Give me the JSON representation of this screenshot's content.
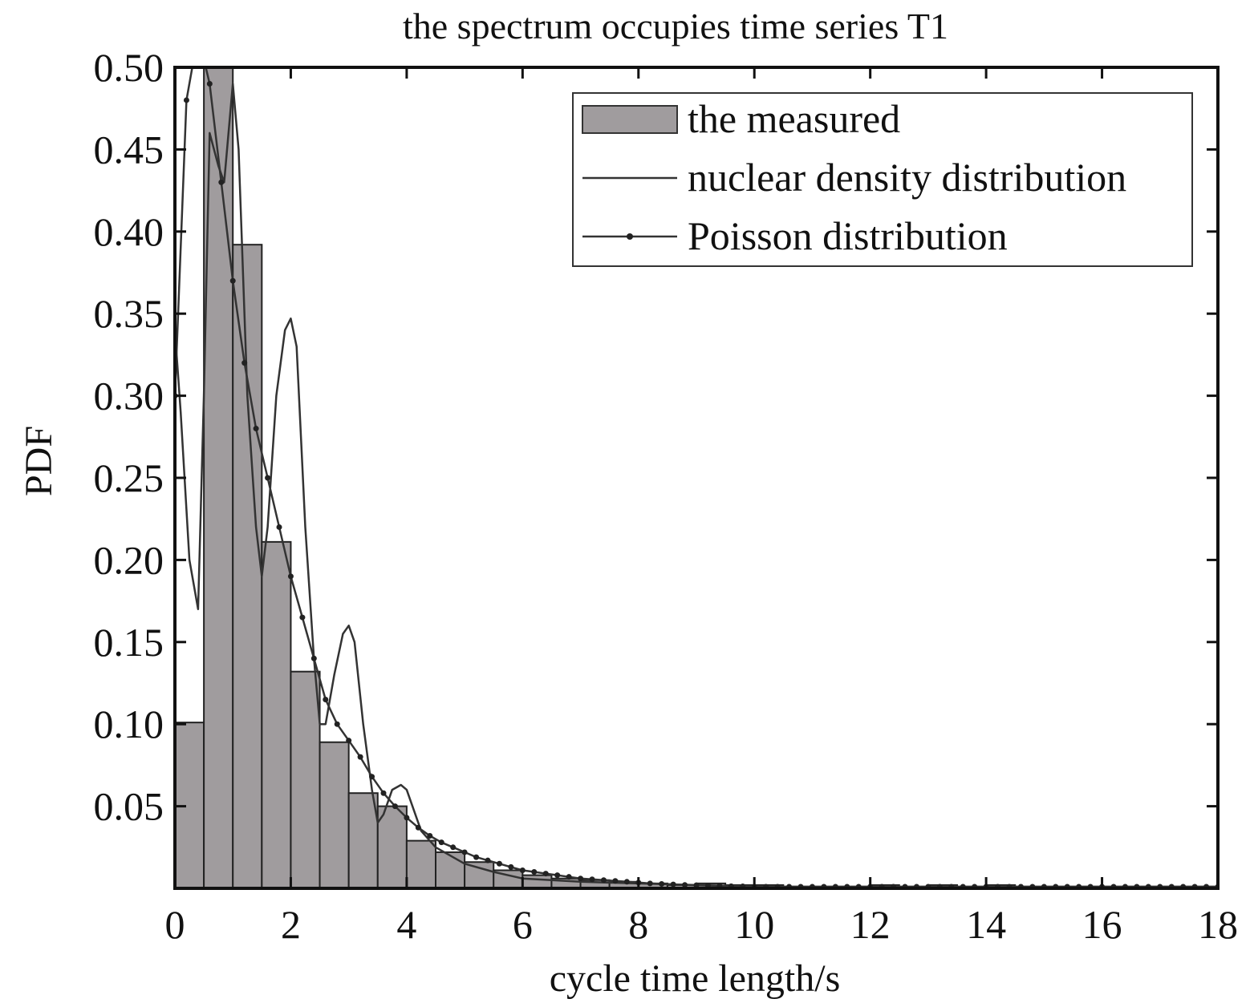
{
  "chart_data": {
    "type": "bar",
    "title": "the spectrum occupies time series T1",
    "xlabel": "cycle time length/s",
    "ylabel": "PDF",
    "xlim": [
      0,
      18
    ],
    "ylim": [
      0,
      0.5
    ],
    "x_ticks": [
      "0",
      "2",
      "4",
      "6",
      "8",
      "10",
      "12",
      "14",
      "16",
      "18"
    ],
    "y_ticks": [
      "0.05",
      "0.10",
      "0.15",
      "0.20",
      "0.25",
      "0.30",
      "0.35",
      "0.40",
      "0.45",
      "0.50"
    ],
    "legend_position": "top-right",
    "grid": false,
    "colors": {
      "bar_fill": "#a09c9e",
      "line": "#333333",
      "axis": "#111111"
    },
    "histogram": {
      "name": "the measured",
      "bin_width": 0.5,
      "bin_starts": [
        0,
        0.5,
        1,
        1.5,
        2,
        2.5,
        3,
        3.5,
        4,
        4.5,
        5,
        5.5,
        6,
        6.5,
        7,
        7.5,
        8,
        8.5,
        9,
        9.5,
        10,
        10.5,
        11,
        11.5,
        12,
        12.5,
        13,
        13.5,
        14,
        14.5,
        15,
        15.5,
        16,
        16.5,
        17,
        17.5
      ],
      "values": [
        0.101,
        0.5,
        0.392,
        0.211,
        0.132,
        0.089,
        0.058,
        0.05,
        0.029,
        0.022,
        0.016,
        0.011,
        0.008,
        0.006,
        0.005,
        0.004,
        0.003,
        0.002,
        0.003,
        0.002,
        0.002,
        0.001,
        0.001,
        0.001,
        0.002,
        0.001,
        0.002,
        0.001,
        0.002,
        0.001,
        0.001,
        0.001,
        0.001,
        0.001,
        0.001,
        0.001
      ]
    },
    "series": [
      {
        "name": "nuclear density distribution",
        "style": "line",
        "x": [
          0,
          0.1,
          0.25,
          0.4,
          0.5,
          0.6,
          0.75,
          0.85,
          1.0,
          1.1,
          1.25,
          1.4,
          1.5,
          1.6,
          1.75,
          1.9,
          2.0,
          2.1,
          2.25,
          2.4,
          2.5,
          2.6,
          2.75,
          2.9,
          3.0,
          3.1,
          3.25,
          3.4,
          3.5,
          3.6,
          3.75,
          3.9,
          4.0,
          4.1,
          4.25,
          4.5,
          5.0,
          5.5,
          6.0,
          7.0,
          8.0,
          9.0,
          10.0,
          12.0,
          14.0,
          16.0,
          18.0
        ],
        "y": [
          0.34,
          0.29,
          0.2,
          0.17,
          0.3,
          0.46,
          0.44,
          0.43,
          0.49,
          0.45,
          0.3,
          0.22,
          0.19,
          0.22,
          0.3,
          0.34,
          0.347,
          0.33,
          0.22,
          0.14,
          0.1,
          0.1,
          0.13,
          0.155,
          0.16,
          0.15,
          0.1,
          0.06,
          0.04,
          0.045,
          0.06,
          0.063,
          0.06,
          0.05,
          0.035,
          0.025,
          0.015,
          0.01,
          0.006,
          0.004,
          0.003,
          0.002,
          0.001,
          0.001,
          0.001,
          0.001,
          0.001
        ]
      },
      {
        "name": "Poisson distribution",
        "style": "line-dot",
        "x": [
          0,
          0.2,
          0.4,
          0.6,
          0.8,
          1.0,
          1.2,
          1.4,
          1.6,
          1.8,
          2.0,
          2.2,
          2.4,
          2.6,
          2.8,
          3.0,
          3.2,
          3.4,
          3.6,
          3.8,
          4.0,
          4.2,
          4.4,
          4.6,
          4.8,
          5.0,
          5.2,
          5.4,
          5.6,
          5.8,
          6.0,
          6.2,
          6.4,
          6.6,
          6.8,
          7.0,
          7.2,
          7.4,
          7.6,
          7.8,
          8.0,
          8.2,
          8.4,
          8.6,
          8.8,
          9.0,
          9.2,
          9.4,
          9.6,
          9.8,
          10.0,
          10.2,
          10.4,
          10.6,
          10.8,
          11.0,
          11.2,
          11.4,
          11.6,
          11.8,
          12.0,
          12.2,
          12.4,
          12.6,
          12.8,
          13.0,
          13.2,
          13.4,
          13.6,
          13.8,
          14.0,
          14.2,
          14.4,
          14.6,
          14.8,
          15.0,
          15.2,
          15.4,
          15.6,
          15.8,
          16.0,
          16.2,
          16.4,
          16.6,
          16.8,
          17.0,
          17.2,
          17.4,
          17.6,
          17.8,
          18.0
        ],
        "y": [
          0.3,
          0.48,
          0.52,
          0.49,
          0.43,
          0.37,
          0.32,
          0.28,
          0.25,
          0.22,
          0.19,
          0.165,
          0.14,
          0.115,
          0.1,
          0.09,
          0.08,
          0.068,
          0.058,
          0.05,
          0.043,
          0.037,
          0.032,
          0.028,
          0.025,
          0.022,
          0.019,
          0.017,
          0.015,
          0.013,
          0.011,
          0.01,
          0.009,
          0.008,
          0.007,
          0.006,
          0.0055,
          0.005,
          0.0045,
          0.004,
          0.0035,
          0.003,
          0.0027,
          0.0024,
          0.0021,
          0.0019,
          0.0017,
          0.0015,
          0.0013,
          0.0012,
          0.001,
          0.001,
          0.001,
          0.001,
          0.001,
          0.001,
          0.001,
          0.001,
          0.001,
          0.001,
          0.001,
          0.001,
          0.001,
          0.001,
          0.001,
          0.001,
          0.001,
          0.001,
          0.001,
          0.001,
          0.001,
          0.001,
          0.001,
          0.001,
          0.001,
          0.001,
          0.001,
          0.001,
          0.001,
          0.001,
          0.001,
          0.001,
          0.001,
          0.001,
          0.001,
          0.001,
          0.001,
          0.001,
          0.001,
          0.001,
          0.001
        ]
      }
    ]
  }
}
